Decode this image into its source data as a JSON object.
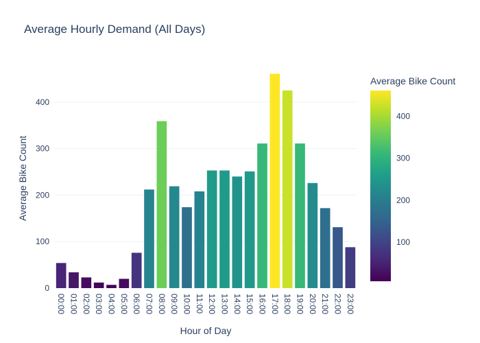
{
  "chart_data": {
    "type": "bar",
    "title": "Average Hourly Demand (All Days)",
    "xlabel": "Hour of Day",
    "ylabel": "Average Bike Count",
    "categories": [
      "00:00",
      "01:00",
      "02:00",
      "03:00",
      "04:00",
      "05:00",
      "06:00",
      "07:00",
      "08:00",
      "09:00",
      "10:00",
      "11:00",
      "12:00",
      "13:00",
      "14:00",
      "15:00",
      "16:00",
      "17:00",
      "18:00",
      "19:00",
      "20:00",
      "21:00",
      "22:00",
      "23:00"
    ],
    "values": [
      54,
      34,
      23,
      12,
      7,
      20,
      76,
      212,
      359,
      219,
      174,
      208,
      253,
      253,
      240,
      251,
      311,
      461,
      425,
      311,
      226,
      172,
      131,
      88
    ],
    "ylim": [
      0,
      475
    ],
    "yticks": [
      0,
      100,
      200,
      300,
      400
    ],
    "grid": true,
    "colorscale": "Viridis",
    "colorbar": {
      "title": "Average Bike Count",
      "range": [
        7,
        461
      ],
      "ticks": [
        100,
        200,
        300,
        400
      ]
    }
  }
}
